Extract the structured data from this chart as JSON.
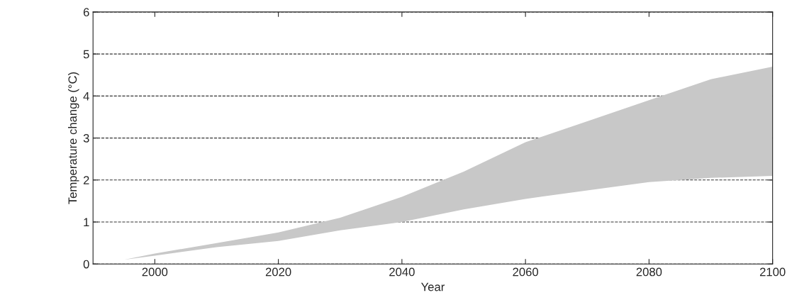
{
  "chart_data": {
    "type": "line",
    "xlabel": "Year",
    "ylabel": "Temperature change (°C)",
    "x": [
      1995,
      2000,
      2010,
      2020,
      2030,
      2040,
      2050,
      2060,
      2070,
      2080,
      2090,
      2100
    ],
    "series": [
      {
        "color": "#c8c8c8",
        "values": [
          null,
          null,
          null,
          null,
          null,
          null,
          null,
          null,
          null,
          null,
          null,
          null
        ],
        "lower": [
          0.1,
          0.2,
          0.4,
          0.55,
          0.8,
          1.0,
          1.3,
          1.55,
          1.75,
          1.95,
          2.05,
          2.1
        ],
        "upper": [
          0.1,
          0.25,
          0.5,
          0.75,
          1.1,
          1.6,
          2.2,
          2.9,
          3.4,
          3.9,
          4.4,
          4.7
        ]
      }
    ],
    "xlim": [
      1990,
      2100
    ],
    "xticks": [
      2000,
      2020,
      2040,
      2060,
      2080,
      2100
    ],
    "ylim": [
      0,
      6
    ],
    "yticks": [
      0,
      1,
      2,
      3,
      4,
      5,
      6
    ],
    "grid": "y",
    "line_style": "dashed"
  }
}
